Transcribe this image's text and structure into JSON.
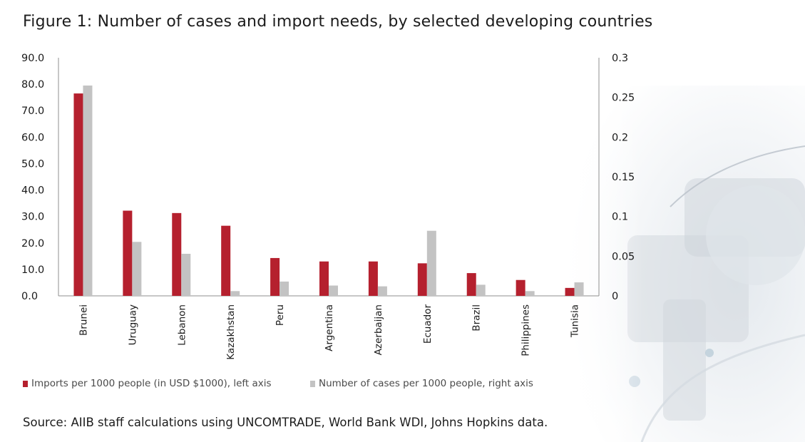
{
  "title": "Figure 1: Number of cases and import needs, by selected developing countries",
  "source": "Source: AIIB staff calculations using UNCOMTRADE, World Bank WDI, Johns Hopkins data.",
  "colors": {
    "imports": "#b5202e",
    "cases": "#c3c3c3",
    "axis": "#8f8f8f"
  },
  "chart_data": {
    "type": "bar",
    "categories": [
      "Brunei",
      "Uruguay",
      "Lebanon",
      "Kazakhstan",
      "Peru",
      "Argentina",
      "Azerbaijan",
      "Ecuador",
      "Brazil",
      "Philippines",
      "Tunisia"
    ],
    "series": [
      {
        "name": "Imports per 1000 people (in USD $1000), left axis",
        "axis": "left",
        "values": [
          76.5,
          32.2,
          31.3,
          26.5,
          14.3,
          13.0,
          13.0,
          12.3,
          8.6,
          6.0,
          3.0
        ]
      },
      {
        "name": "Number of cases per 1000 people, right axis",
        "axis": "right",
        "values": [
          0.265,
          0.068,
          0.053,
          0.006,
          0.018,
          0.013,
          0.012,
          0.082,
          0.014,
          0.006,
          0.017
        ]
      }
    ],
    "left_axis": {
      "ylim": [
        0,
        90
      ],
      "ticks": [
        "90.0",
        "80.0",
        "70.0",
        "60.0",
        "50.0",
        "40.0",
        "30.0",
        "20.0",
        "10.0",
        "0.0"
      ]
    },
    "right_axis": {
      "ylim": [
        0,
        0.3
      ],
      "ticks": [
        "0.3",
        "0.25",
        "0.2",
        "0.15",
        "0.1",
        "0.05",
        "0"
      ]
    },
    "grid": false,
    "legend_position": "bottom-left",
    "xlabel": "",
    "ylabel": ""
  }
}
